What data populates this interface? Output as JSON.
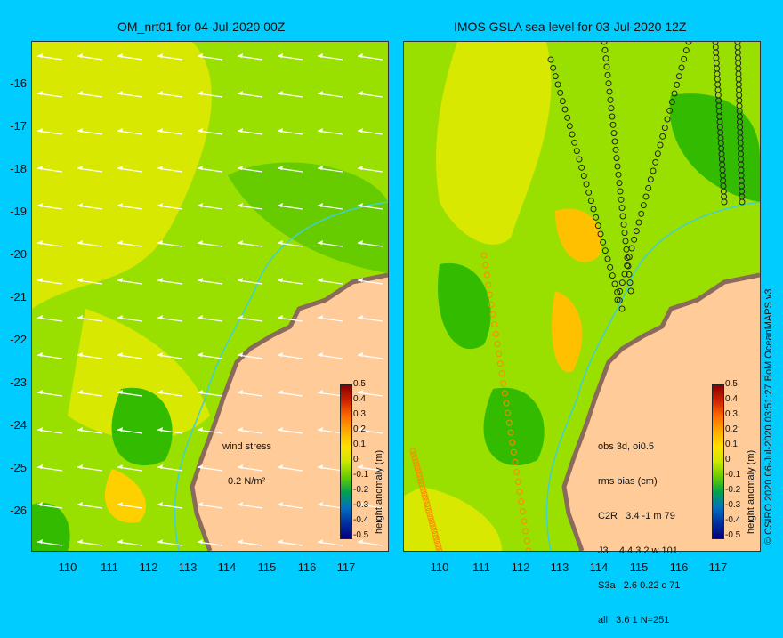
{
  "panels": {
    "left": {
      "title": "OM_nrt01 for 04-Jul-2020 00Z"
    },
    "right": {
      "title": "IMOS GSLA sea level  for 03-Jul-2020 12Z"
    }
  },
  "axes": {
    "y_ticks": [
      "-16",
      "-17",
      "-18",
      "-19",
      "-20",
      "-21",
      "-22",
      "-23",
      "-24",
      "-25",
      "-26"
    ],
    "x_ticks": [
      "110",
      "111",
      "112",
      "113",
      "114",
      "115",
      "116",
      "117"
    ]
  },
  "annotations": {
    "left": {
      "line1": "wind stress",
      "line2": "0.2 N/m²"
    },
    "right": {
      "header1": "obs 3d, oi0.5",
      "header2": "rms bias (cm)",
      "rows": [
        "C2R   3.4 -1 m 79",
        "J3    4.4 3.2 w 101",
        "S3a   2.6 0.22 c 71",
        "all   3.6 1 N=251"
      ]
    }
  },
  "colorbar": {
    "title": "height anomaly (m)",
    "labels": [
      "0.5",
      "0.4",
      "0.3",
      "0.2",
      "0.1",
      "0",
      "-0.1",
      "-0.2",
      "-0.3",
      "-0.4",
      "-0.5"
    ],
    "colors": [
      "#8b0000",
      "#cc2200",
      "#ff6a00",
      "#ffaa00",
      "#ffe000",
      "#cce600",
      "#66cc00",
      "#00a050",
      "#0070c0",
      "#0030a0",
      "#000080"
    ]
  },
  "credit": "© CSIRO 2020   06-Jul-2020 03:51:27 BoM OceanMAPS v3",
  "map_colors": {
    "land": "#ffcc99",
    "coast": "#b09080",
    "sea_base": "#99e000",
    "high": "#e6e600",
    "highest": "#ffd000",
    "low": "#33bb00"
  }
}
